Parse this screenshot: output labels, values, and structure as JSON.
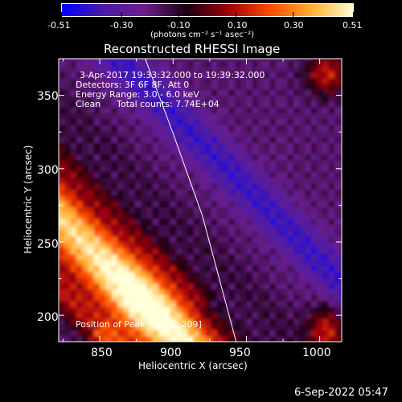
{
  "chart_data": {
    "type": "heatmap",
    "title": "Reconstructed RHESSI Image",
    "xlabel": "Heliocentric X (arcsec)",
    "ylabel": "Heliocentric Y (arcsec)",
    "xlim": [
      822,
      1015
    ],
    "ylim": [
      182,
      375
    ],
    "x_ticks": [
      850,
      900,
      950,
      1000
    ],
    "y_ticks": [
      200,
      250,
      300,
      350
    ],
    "colorbar": {
      "ticks": [
        "-0.51",
        "-0.30",
        "-0.10",
        "0.10",
        "0.30",
        "0.51"
      ],
      "tick_values": [
        -0.51,
        -0.3,
        -0.1,
        0.1,
        0.3,
        0.51
      ],
      "range": [
        -0.51,
        0.51
      ],
      "units": "(photons cm⁻² s⁻¹ asec⁻²)",
      "colors": [
        "#0000ff",
        "#4a1aa8",
        "#6b1f8c",
        "#1a0010",
        "#a0000a",
        "#ff4a00",
        "#ffb030",
        "#ffffd8"
      ]
    },
    "annotations": [
      "3-Apr-2017 19:33:32.000 to 19:39:32.000",
      "Detectors: 3F 6F 8F, Att 0",
      "Energy Range: 3.0 - 6.0 keV",
      "Clean",
      "Total counts: 7.74E+04"
    ],
    "peak_label": "Position of Peak = [880,209]",
    "peak": [
      880,
      209
    ],
    "limb_curve": [
      [
        881,
        375
      ],
      [
        900,
        324
      ],
      [
        920,
        268
      ],
      [
        943,
        182
      ]
    ],
    "bands": [
      {
        "name": "",
        "along": 0.0,
        "width": 20,
        "level": 0.36
      },
      {
        "name": "",
        "along": 55,
        "width": 14,
        "level": -0.06
      }
    ],
    "grid": false
  },
  "footer": {
    "timestamp": "6-Sep-2022 05:47"
  }
}
